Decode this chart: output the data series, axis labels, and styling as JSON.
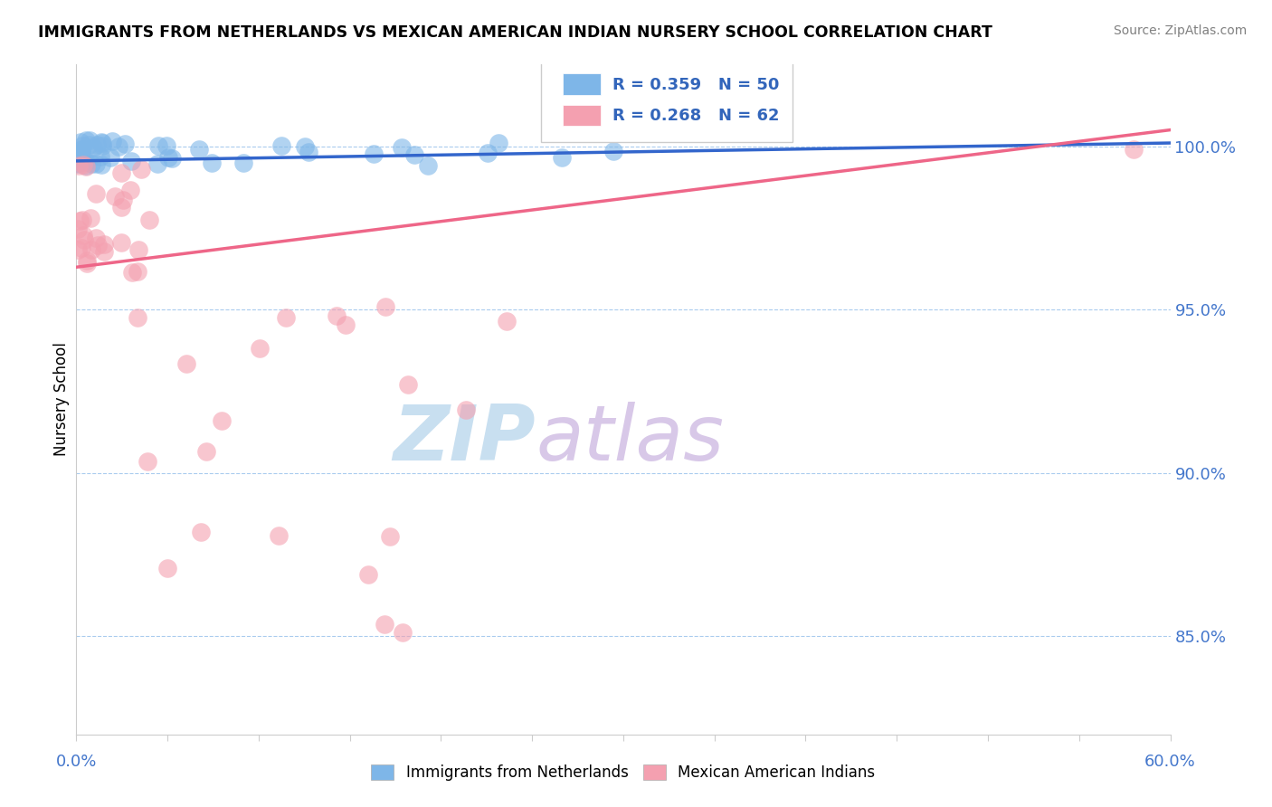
{
  "title": "IMMIGRANTS FROM NETHERLANDS VS MEXICAN AMERICAN INDIAN NURSERY SCHOOL CORRELATION CHART",
  "source": "Source: ZipAtlas.com",
  "ylabel": "Nursery School",
  "yaxis_labels": [
    "100.0%",
    "95.0%",
    "90.0%",
    "85.0%"
  ],
  "yaxis_values": [
    1.0,
    0.95,
    0.9,
    0.85
  ],
  "xlim": [
    0.0,
    0.6
  ],
  "ylim": [
    0.82,
    1.025
  ],
  "legend_R1": "R = 0.359",
  "legend_N1": "N = 50",
  "legend_R2": "R = 0.268",
  "legend_N2": "N = 62",
  "color_blue": "#7EB6E8",
  "color_pink": "#F4A0B0",
  "color_blue_line": "#3366CC",
  "color_pink_line": "#EE6688",
  "watermark_zip": "ZIP",
  "watermark_atlas": "atlas",
  "watermark_color_zip": "#C8DFF0",
  "watermark_color_atlas": "#D8C8E8",
  "series1_label": "Immigrants from Netherlands",
  "series2_label": "Mexican American Indians"
}
